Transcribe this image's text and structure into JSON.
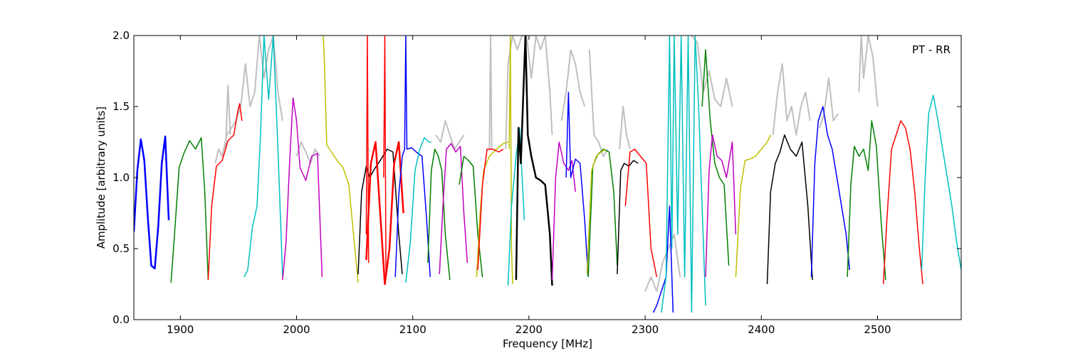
{
  "chart_data": {
    "type": "line",
    "title": "",
    "annotation": "PT - RR",
    "xlabel": "Frequency [MHz]",
    "ylabel": "Amplitude [arbitrary units]",
    "xlim": [
      1860,
      2572
    ],
    "ylim": [
      0.0,
      2.0
    ],
    "x_ticks": [
      1900,
      2000,
      2100,
      2200,
      2300,
      2400,
      2500
    ],
    "x_tick_labels": [
      "1900",
      "2000",
      "2100",
      "2200",
      "2300",
      "2400",
      "2500"
    ],
    "y_ticks": [
      0.0,
      0.5,
      1.0,
      1.5,
      2.0
    ],
    "y_tick_labels": [
      "0.0",
      "0.5",
      "1.0",
      "1.5",
      "2.0"
    ],
    "grid": false,
    "legend": "none",
    "background_series_color": "#bfbfbf",
    "series": [
      {
        "color": "#0000ff",
        "width": 2.5,
        "x": [
          1860,
          1863,
          1866,
          1869,
          1872,
          1875,
          1878,
          1881,
          1884,
          1887,
          1890
        ],
        "y": [
          0.62,
          1.05,
          1.27,
          1.12,
          0.72,
          0.38,
          0.36,
          0.66,
          1.1,
          1.29,
          0.7
        ]
      },
      {
        "color": "#008000",
        "width": 1.5,
        "x": [
          1892,
          1895,
          1899,
          1903,
          1908,
          1913,
          1918,
          1921,
          1924
        ],
        "y": [
          0.26,
          0.6,
          1.07,
          1.17,
          1.26,
          1.2,
          1.28,
          0.9,
          0.28
        ]
      },
      {
        "color": "#ff0000",
        "width": 1.5,
        "x": [
          1924,
          1927,
          1931,
          1936,
          1941,
          1946,
          1949,
          1951,
          1953
        ],
        "y": [
          0.28,
          0.8,
          1.08,
          1.12,
          1.26,
          1.3,
          1.45,
          1.52,
          1.4
        ]
      },
      {
        "color": "#00bfbf",
        "width": 1.5,
        "x": [
          1955,
          1958,
          1962,
          1966,
          1969,
          1972,
          1976,
          1980,
          1984,
          1988
        ],
        "y": [
          0.3,
          0.35,
          0.65,
          0.8,
          1.3,
          2.0,
          1.55,
          2.0,
          1.2,
          0.3
        ]
      },
      {
        "color": "#bf00bf",
        "width": 1.5,
        "x": [
          1988,
          1991,
          1994,
          1997,
          2000,
          2003,
          2008,
          2013,
          2018,
          2022
        ],
        "y": [
          0.28,
          0.55,
          1.1,
          1.56,
          1.4,
          1.07,
          0.98,
          1.15,
          1.17,
          0.3
        ]
      },
      {
        "color": "#bfbf00",
        "width": 1.5,
        "x": [
          2023,
          2024,
          2026,
          2030,
          2035,
          2040,
          2045,
          2049,
          2053
        ],
        "y": [
          2.0,
          1.8,
          1.23,
          1.18,
          1.12,
          1.07,
          0.95,
          0.6,
          0.26
        ]
      },
      {
        "color": "#000000",
        "width": 1.5,
        "x": [
          2053,
          2056,
          2060,
          2063,
          2067,
          2072,
          2078,
          2083,
          2088,
          2091
        ],
        "y": [
          0.32,
          0.9,
          1.08,
          1.0,
          1.06,
          1.12,
          1.2,
          1.18,
          0.6,
          0.32
        ]
      },
      {
        "color": "#ff0000",
        "width": 2.5,
        "x": [
          2060,
          2064,
          2068,
          2072,
          2076,
          2080,
          2084,
          2088,
          2092
        ],
        "y": [
          0.42,
          1.1,
          1.25,
          0.75,
          0.25,
          0.5,
          1.1,
          1.25,
          0.75
        ]
      },
      {
        "color": "#ff0000",
        "width": 1.5,
        "x": [
          2060,
          2061,
          2062
        ],
        "y": [
          0.6,
          2.0,
          0.4
        ]
      },
      {
        "color": "#ff0000",
        "width": 1.5,
        "x": [
          2075,
          2076,
          2077
        ],
        "y": [
          1.0,
          2.0,
          0.3
        ]
      },
      {
        "color": "#0000ff",
        "width": 1.5,
        "x": [
          2085,
          2088,
          2091,
          2093,
          2094,
          2095,
          2099,
          2103,
          2108,
          2112,
          2115
        ],
        "y": [
          0.3,
          0.88,
          1.15,
          1.2,
          2.0,
          1.2,
          1.21,
          1.18,
          1.15,
          0.7,
          0.3
        ]
      },
      {
        "color": "#00bfbf",
        "width": 1.5,
        "x": [
          2094,
          2098,
          2102,
          2106,
          2110,
          2114,
          2116
        ],
        "y": [
          0.26,
          0.55,
          1.05,
          1.2,
          1.28,
          1.25,
          1.25
        ]
      },
      {
        "color": "#008000",
        "width": 1.5,
        "x": [
          2113,
          2116,
          2119,
          2122,
          2125,
          2128,
          2132
        ],
        "y": [
          0.4,
          1.05,
          1.2,
          1.15,
          1.05,
          0.6,
          0.28
        ]
      },
      {
        "color": "#bf00bf",
        "width": 1.5,
        "x": [
          2123,
          2126,
          2129,
          2133,
          2137,
          2141,
          2144,
          2147
        ],
        "y": [
          0.32,
          0.8,
          1.2,
          1.24,
          1.18,
          1.22,
          0.75,
          0.4
        ]
      },
      {
        "color": "#008000",
        "width": 1.5,
        "x": [
          2140,
          2144,
          2148,
          2152,
          2156,
          2160
        ],
        "y": [
          0.95,
          1.15,
          1.12,
          1.08,
          0.6,
          0.3
        ]
      },
      {
        "color": "#bfbf00",
        "width": 1.5,
        "x": [
          2155,
          2158,
          2161,
          2166,
          2172,
          2178,
          2182
        ],
        "y": [
          0.3,
          0.75,
          1.05,
          1.15,
          1.2,
          1.24,
          1.25
        ]
      },
      {
        "color": "#ff0000",
        "width": 1.5,
        "x": [
          2156,
          2160,
          2164,
          2169,
          2174,
          2178
        ],
        "y": [
          0.35,
          0.95,
          1.2,
          1.2,
          1.18,
          1.2
        ]
      },
      {
        "color": "#bfbf00",
        "width": 1.5,
        "x": [
          2183,
          2184,
          2185,
          2186
        ],
        "y": [
          1.2,
          2.0,
          0.5,
          0.25
        ]
      },
      {
        "color": "#00bfbf",
        "width": 1.5,
        "x": [
          2182,
          2185,
          2189,
          2192,
          2196
        ],
        "y": [
          0.24,
          0.8,
          1.15,
          1.35,
          0.7
        ]
      },
      {
        "color": "#000000",
        "width": 2.5,
        "x": [
          2189,
          2191,
          2193,
          2195,
          2197,
          2199,
          2202,
          2206,
          2210,
          2214,
          2218,
          2220
        ],
        "y": [
          0.28,
          1.35,
          1.1,
          1.55,
          2.0,
          1.3,
          1.15,
          1.0,
          0.98,
          0.95,
          0.6,
          0.24
        ]
      },
      {
        "color": "#bf00bf",
        "width": 1.5,
        "x": [
          2220,
          2223,
          2226,
          2230,
          2234,
          2237,
          2240
        ],
        "y": [
          0.28,
          1.0,
          1.25,
          1.1,
          1.05,
          1.12,
          0.9
        ]
      },
      {
        "color": "#0000ff",
        "width": 1.5,
        "x": [
          2232,
          2234,
          2236,
          2240,
          2244,
          2248,
          2251
        ],
        "y": [
          1.0,
          1.6,
          1.0,
          1.13,
          1.1,
          0.7,
          0.3
        ]
      },
      {
        "color": "#008000",
        "width": 1.5,
        "x": [
          2251,
          2255,
          2259,
          2264,
          2269,
          2273,
          2276
        ],
        "y": [
          0.3,
          1.08,
          1.16,
          1.2,
          1.18,
          0.9,
          0.38
        ]
      },
      {
        "color": "#bfbf00",
        "width": 1.5,
        "x": [
          2250,
          2254,
          2258,
          2262,
          2266
        ],
        "y": [
          0.32,
          1.05,
          1.15,
          1.18,
          1.2
        ]
      },
      {
        "color": "#000000",
        "width": 1.5,
        "x": [
          2276,
          2279,
          2282,
          2286,
          2290,
          2294
        ],
        "y": [
          0.32,
          1.05,
          1.1,
          1.08,
          1.12,
          1.1
        ]
      },
      {
        "color": "#ff0000",
        "width": 1.5,
        "x": [
          2283,
          2287,
          2291,
          2296,
          2301,
          2305,
          2310
        ],
        "y": [
          0.8,
          1.18,
          1.2,
          1.15,
          1.1,
          0.5,
          0.3
        ]
      },
      {
        "color": "#0000ff",
        "width": 1.5,
        "x": [
          2307,
          2310,
          2314,
          2318,
          2321,
          2324
        ],
        "y": [
          0.05,
          0.1,
          0.2,
          0.3,
          0.8,
          0.05
        ]
      },
      {
        "color": "#00bfbf",
        "width": 1.5,
        "x": [
          2314,
          2318,
          2321,
          2323,
          2325,
          2328,
          2331,
          2334,
          2337,
          2340
        ],
        "y": [
          0.05,
          0.3,
          2.0,
          0.5,
          2.0,
          0.6,
          2.0,
          0.3,
          2.0,
          0.05
        ]
      },
      {
        "color": "#00bfbf",
        "width": 1.5,
        "x": [
          2340,
          2343,
          2346,
          2349,
          2352
        ],
        "y": [
          0.05,
          2.0,
          1.5,
          0.8,
          0.1
        ]
      },
      {
        "color": "#008000",
        "width": 1.5,
        "x": [
          2349,
          2352,
          2356,
          2360,
          2364,
          2368,
          2372
        ],
        "y": [
          1.5,
          1.9,
          1.4,
          1.1,
          1.0,
          0.95,
          0.38
        ]
      },
      {
        "color": "#bf00bf",
        "width": 1.5,
        "x": [
          2352,
          2355,
          2358,
          2362,
          2366,
          2370,
          2375,
          2378
        ],
        "y": [
          0.3,
          1.05,
          1.3,
          1.15,
          1.12,
          1.0,
          1.25,
          0.6
        ]
      },
      {
        "color": "#bfbf00",
        "width": 1.5,
        "x": [
          2378,
          2382,
          2386,
          2390,
          2395,
          2400,
          2405,
          2408
        ],
        "y": [
          0.3,
          0.92,
          1.12,
          1.13,
          1.15,
          1.2,
          1.25,
          1.3
        ]
      },
      {
        "color": "#000000",
        "width": 1.5,
        "x": [
          2405,
          2408,
          2412,
          2416,
          2420,
          2425,
          2430,
          2435,
          2440,
          2444
        ],
        "y": [
          0.25,
          0.9,
          1.1,
          1.18,
          1.3,
          1.2,
          1.15,
          1.25,
          0.8,
          0.28
        ]
      },
      {
        "color": "#0000ff",
        "width": 1.5,
        "x": [
          2443,
          2446,
          2449,
          2453,
          2457,
          2461,
          2465,
          2469,
          2473,
          2476
        ],
        "y": [
          0.3,
          1.1,
          1.4,
          1.5,
          1.3,
          1.2,
          1.0,
          0.8,
          0.6,
          0.35
        ]
      },
      {
        "color": "#008000",
        "width": 1.5,
        "x": [
          2474,
          2477,
          2480,
          2484,
          2488,
          2492,
          2495,
          2499,
          2503,
          2507
        ],
        "y": [
          0.3,
          0.95,
          1.22,
          1.15,
          1.2,
          1.05,
          1.4,
          1.22,
          0.7,
          0.28
        ]
      },
      {
        "color": "#ff0000",
        "width": 1.5,
        "x": [
          2505,
          2508,
          2512,
          2516,
          2520,
          2524,
          2528,
          2532,
          2536,
          2539
        ],
        "y": [
          0.25,
          0.7,
          1.2,
          1.3,
          1.4,
          1.35,
          1.2,
          0.9,
          0.5,
          0.25
        ]
      },
      {
        "color": "#00bfbf",
        "width": 1.5,
        "x": [
          2538,
          2541,
          2544,
          2548,
          2552,
          2556,
          2560,
          2564,
          2568,
          2572
        ],
        "y": [
          0.35,
          1.0,
          1.45,
          1.58,
          1.4,
          1.2,
          1.0,
          0.8,
          0.55,
          0.35
        ]
      }
    ],
    "background_series": [
      {
        "x": [
          1930,
          1933,
          1936,
          1940,
          1944,
          1948,
          1952,
          1956,
          1960,
          1964,
          1968,
          1972,
          1976,
          1980,
          1984,
          1988
        ],
        "y": [
          1.1,
          1.2,
          1.15,
          1.3,
          1.35,
          1.4,
          1.5,
          1.8,
          1.5,
          1.6,
          2.0,
          1.7,
          1.9,
          2.0,
          1.6,
          1.4
        ]
      },
      {
        "x": [
          1939,
          1941,
          1943
        ],
        "y": [
          1.2,
          1.65,
          1.3
        ]
      },
      {
        "x": [
          2000,
          2004,
          2008,
          2012,
          2016,
          2020
        ],
        "y": [
          1.15,
          1.25,
          1.18,
          1.1,
          1.2,
          1.15
        ]
      },
      {
        "x": [
          2120,
          2124,
          2128,
          2132,
          2136,
          2140,
          2144
        ],
        "y": [
          1.3,
          1.25,
          1.4,
          1.3,
          1.2,
          1.25,
          1.3
        ]
      },
      {
        "x": [
          2166,
          2167,
          2168
        ],
        "y": [
          1.2,
          2.0,
          1.2
        ]
      },
      {
        "x": [
          2180,
          2182,
          2186,
          2190,
          2194,
          2198,
          2202,
          2206,
          2210,
          2214,
          2218,
          2220
        ],
        "y": [
          1.2,
          1.8,
          2.0,
          1.9,
          2.0,
          2.0,
          1.7,
          2.0,
          1.9,
          2.0,
          1.6,
          1.3
        ]
      },
      {
        "x": [
          2228,
          2232,
          2236,
          2240,
          2244,
          2248
        ],
        "y": [
          1.4,
          1.6,
          1.9,
          1.8,
          1.6,
          1.5
        ]
      },
      {
        "x": [
          2252,
          2256,
          2260,
          2264,
          2268
        ],
        "y": [
          1.9,
          1.3,
          1.25,
          1.15,
          1.2
        ]
      },
      {
        "x": [
          2278,
          2281,
          2284,
          2287
        ],
        "y": [
          1.2,
          1.5,
          1.3,
          1.2
        ]
      },
      {
        "x": [
          2300,
          2305,
          2310,
          2315,
          2320,
          2325,
          2330
        ],
        "y": [
          0.2,
          0.3,
          0.2,
          0.4,
          0.5,
          0.6,
          0.3
        ]
      },
      {
        "x": [
          2340,
          2345,
          2350,
          2355,
          2360,
          2365,
          2370,
          2375
        ],
        "y": [
          2.0,
          1.95,
          1.6,
          1.75,
          1.55,
          1.5,
          1.7,
          1.5
        ]
      },
      {
        "x": [
          2410,
          2414,
          2418,
          2422,
          2426,
          2430,
          2434,
          2438,
          2442
        ],
        "y": [
          1.3,
          1.6,
          1.8,
          1.4,
          1.5,
          1.3,
          1.5,
          1.6,
          1.4
        ]
      },
      {
        "x": [
          2450,
          2454,
          2458,
          2462,
          2466
        ],
        "y": [
          1.35,
          1.45,
          1.7,
          1.4,
          1.45
        ]
      },
      {
        "x": [
          2484,
          2486,
          2488,
          2492,
          2496,
          2500
        ],
        "y": [
          1.6,
          2.0,
          1.7,
          2.0,
          1.85,
          1.5
        ]
      }
    ]
  }
}
